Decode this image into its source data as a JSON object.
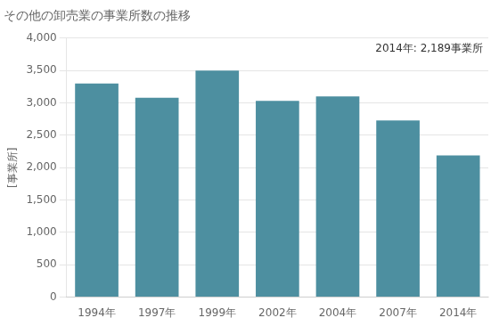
{
  "chart_data": {
    "type": "bar",
    "title": "その他の卸売業の事業所数の推移",
    "ylabel": "[事業所]",
    "annotation": "2014年: 2,189事業所",
    "categories": [
      "1994年",
      "1997年",
      "1999年",
      "2002年",
      "2004年",
      "2007年",
      "2014年"
    ],
    "values": [
      3300,
      3080,
      3500,
      3030,
      3100,
      2730,
      2189
    ],
    "color": "#4d8fa0",
    "ylim": [
      0,
      4000
    ],
    "yticks": [
      0,
      500,
      {
        "value": 1000,
        "label": "1,000"
      },
      {
        "value": 1500,
        "label": "1,500"
      },
      {
        "value": 2000,
        "label": "2,000"
      },
      {
        "value": 2500,
        "label": "2,500"
      },
      {
        "value": 3000,
        "label": "3,000"
      },
      {
        "value": 3500,
        "label": "3,500"
      },
      {
        "value": 4000,
        "label": "4,000"
      }
    ],
    "grid": true
  }
}
